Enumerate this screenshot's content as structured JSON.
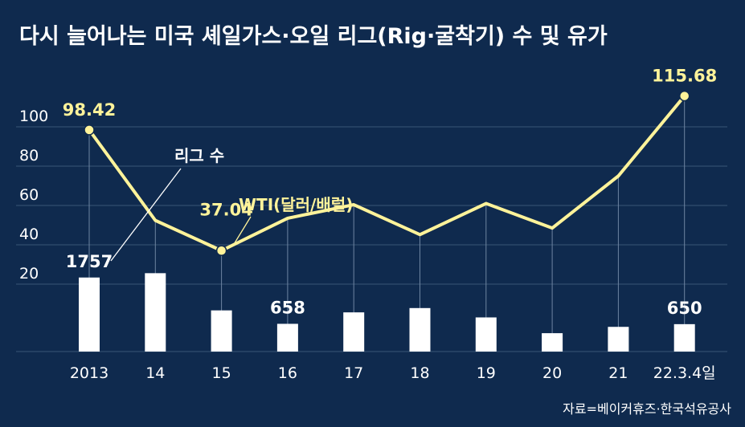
{
  "chart_data": {
    "type": "bar+line",
    "title": "다시 늘어나는 미국 셰일가스·오일 리그(Rig·굴착기) 수 및 유가",
    "categories": [
      "2013",
      "14",
      "15",
      "16",
      "17",
      "18",
      "19",
      "20",
      "21",
      "22.3.4일"
    ],
    "yticks": [
      "100",
      "80",
      "60",
      "40",
      "20"
    ],
    "ylim": [
      10,
      110
    ],
    "grid": true,
    "series": [
      {
        "name": "리그 수",
        "type": "bar",
        "color": "#ffffff",
        "values": [
          1757,
          1860,
          977,
          658,
          930,
          1032,
          810,
          436,
          586,
          650
        ],
        "labels": {
          "0": "1757",
          "3": "658",
          "9": "650"
        }
      },
      {
        "name": "WTI(달러/배럴)",
        "type": "line",
        "color": "#fff39a",
        "values": [
          98.42,
          52.4,
          37.04,
          53.5,
          60.4,
          45.2,
          61.0,
          48.5,
          75.0,
          115.68
        ],
        "labels": {
          "0": "98.42",
          "2": "37.04",
          "9": "115.68"
        }
      }
    ],
    "source": "자료=베이커휴즈·한국석유공사"
  }
}
